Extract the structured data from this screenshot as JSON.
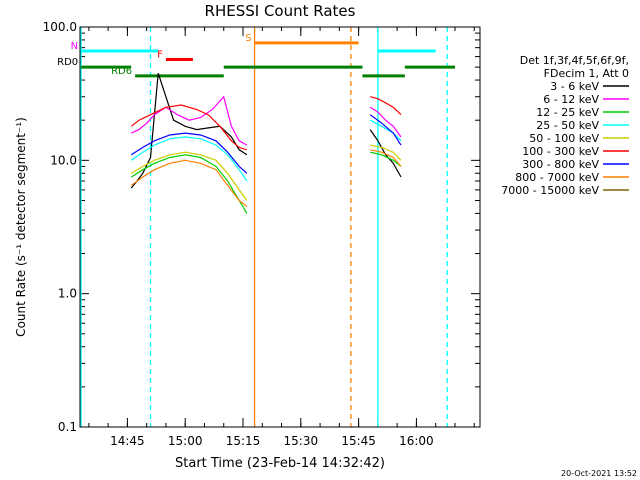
{
  "chart_data": {
    "type": "line",
    "title": "RHESSI Count Rates",
    "xlabel": "Start Time (23-Feb-14 14:32:42)",
    "ylabel": "Count Rate (s⁻¹ detector segment⁻¹)",
    "yscale": "log",
    "ylim": [
      0.1,
      100.0
    ],
    "xlim": [
      "14:32:42",
      "16:16:30"
    ],
    "x_ticks": [
      "14:45",
      "15:00",
      "15:15",
      "15:30",
      "15:45",
      "16:00"
    ],
    "y_ticks": [
      "0.1",
      "1.0",
      "10.0",
      "100.0"
    ],
    "grid": false,
    "legend_header": [
      "Det 1f,3f,4f,5f,6f,9f,",
      "FDecim 1, Att 0"
    ],
    "legend_placement": "right",
    "series": [
      {
        "name": "3 - 6 keV",
        "color": "#000000",
        "segments": [
          {
            "x": [
              "14:46:00",
              "14:47:30",
              "14:49:00",
              "14:51:00",
              "14:53:00",
              "14:55:00",
              "14:57:00",
              "15:00:00",
              "15:03:00",
              "15:06:00",
              "15:09:00",
              "15:12:00",
              "15:14:00",
              "15:16:00"
            ],
            "y": [
              6.2,
              7.0,
              8.0,
              10.5,
              45.0,
              30.0,
              20.0,
              18.0,
              17.0,
              17.5,
              18.0,
              15.0,
              12.0,
              11.0
            ]
          },
          {
            "x": [
              "15:48:00",
              "15:50:00",
              "15:52:00",
              "15:54:00",
              "15:56:00"
            ],
            "y": [
              17.0,
              14.0,
              11.0,
              9.5,
              7.5
            ]
          }
        ]
      },
      {
        "name": "6 - 12 keV",
        "color": "#ff00ff",
        "segments": [
          {
            "x": [
              "14:46:00",
              "14:48:00",
              "14:50:00",
              "14:52:00",
              "14:55:00",
              "14:58:00",
              "15:01:00",
              "15:04:00",
              "15:07:00",
              "15:10:00",
              "15:12:00",
              "15:14:00",
              "15:16:00"
            ],
            "y": [
              16.0,
              17.0,
              19.0,
              22.0,
              25.0,
              22.0,
              20.0,
              21.0,
              24.0,
              30.0,
              18.0,
              14.0,
              13.0
            ]
          },
          {
            "x": [
              "15:48:00",
              "15:50:00",
              "15:52:00",
              "15:54:00",
              "15:56:00"
            ],
            "y": [
              25.0,
              23.0,
              20.0,
              18.0,
              15.0
            ]
          }
        ]
      },
      {
        "name": "12 - 25 keV",
        "color": "#00cc00",
        "segments": [
          {
            "x": [
              "14:46:00",
              "14:49:00",
              "14:52:00",
              "14:56:00",
              "15:00:00",
              "15:04:00",
              "15:08:00",
              "15:11:00",
              "15:14:00",
              "15:16:00"
            ],
            "y": [
              7.5,
              8.5,
              9.5,
              10.5,
              11.0,
              10.5,
              9.0,
              7.0,
              5.0,
              4.0
            ]
          },
          {
            "x": [
              "15:48:00",
              "15:51:00",
              "15:54:00",
              "15:56:00"
            ],
            "y": [
              11.5,
              11.0,
              10.0,
              9.0
            ]
          }
        ]
      },
      {
        "name": "25 - 50 keV",
        "color": "#00ffff",
        "segments": [
          {
            "x": [
              "14:46:00",
              "14:49:00",
              "14:52:00",
              "14:56:00",
              "15:00:00",
              "15:04:00",
              "15:08:00",
              "15:11:00",
              "15:14:00",
              "15:16:00"
            ],
            "y": [
              10.0,
              11.5,
              13.0,
              14.5,
              15.0,
              14.5,
              13.0,
              11.0,
              8.5,
              7.0
            ]
          },
          {
            "x": [
              "15:48:00",
              "15:51:00",
              "15:54:00",
              "15:56:00"
            ],
            "y": [
              20.0,
              18.0,
              16.0,
              14.0
            ]
          }
        ]
      },
      {
        "name": "50 - 100 keV",
        "color": "#cccc00",
        "segments": [
          {
            "x": [
              "14:46:00",
              "14:49:00",
              "14:52:00",
              "14:56:00",
              "15:00:00",
              "15:04:00",
              "15:08:00",
              "15:11:00",
              "15:14:00",
              "15:16:00"
            ],
            "y": [
              8.0,
              9.0,
              10.0,
              11.0,
              11.5,
              11.0,
              10.0,
              8.0,
              6.0,
              5.0
            ]
          },
          {
            "x": [
              "15:48:00",
              "15:51:00",
              "15:54:00",
              "15:56:00"
            ],
            "y": [
              13.0,
              12.5,
              11.5,
              10.0
            ]
          }
        ]
      },
      {
        "name": "100 - 300 keV",
        "color": "#ff0000",
        "segments": [
          {
            "x": [
              "14:46:00",
              "14:48:00",
              "14:51:00",
              "14:55:00",
              "14:59:00",
              "15:03:00",
              "15:06:00",
              "15:09:00",
              "15:12:00",
              "15:14:00",
              "15:16:00"
            ],
            "y": [
              18.0,
              20.0,
              22.0,
              25.0,
              26.0,
              24.0,
              22.0,
              18.0,
              14.0,
              12.5,
              12.0
            ]
          },
          {
            "x": [
              "15:48:00",
              "15:50:00",
              "15:52:00",
              "15:54:00",
              "15:56:00"
            ],
            "y": [
              30.0,
              29.0,
              27.0,
              25.0,
              22.0
            ]
          }
        ]
      },
      {
        "name": "300 - 800 keV",
        "color": "#0000ff",
        "segments": [
          {
            "x": [
              "14:46:00",
              "14:49:00",
              "14:52:00",
              "14:56:00",
              "15:00:00",
              "15:04:00",
              "15:08:00",
              "15:11:00",
              "15:14:00",
              "15:16:00"
            ],
            "y": [
              11.0,
              12.5,
              14.0,
              15.5,
              16.0,
              15.5,
              14.0,
              11.5,
              9.0,
              8.0
            ]
          },
          {
            "x": [
              "15:48:00",
              "15:51:00",
              "15:54:00",
              "15:56:00"
            ],
            "y": [
              22.0,
              19.0,
              16.0,
              13.0
            ]
          }
        ]
      },
      {
        "name": "800 - 7000 keV",
        "color": "#ff8000",
        "segments": [
          {
            "x": [
              "14:46:00",
              "14:49:00",
              "14:52:00",
              "14:56:00",
              "15:00:00",
              "15:04:00",
              "15:08:00",
              "15:11:00",
              "15:14:00",
              "15:16:00"
            ],
            "y": [
              6.5,
              7.5,
              8.5,
              9.5,
              10.0,
              9.5,
              8.5,
              6.5,
              5.0,
              4.5
            ]
          },
          {
            "x": [
              "15:48:00",
              "15:51:00",
              "15:54:00",
              "15:56:00"
            ],
            "y": [
              12.0,
              11.5,
              10.5,
              9.0
            ]
          }
        ]
      },
      {
        "name": "7000 - 15000 keV",
        "color": "#806000",
        "segments": []
      }
    ],
    "flag_bars": [
      {
        "label": "N",
        "label_color": "#ff00ff",
        "color": "#00ffff",
        "segments": [
          [
            "14:33:00",
            "14:53:00"
          ],
          [
            "15:50:00",
            "16:05:00"
          ]
        ],
        "y": 66.0
      },
      {
        "label": "S",
        "label_color": "#ff8000",
        "color": "#ff8000",
        "segments": [
          [
            "15:18:00",
            "15:45:00"
          ]
        ],
        "y": 76.0
      },
      {
        "label": "F",
        "label_color": "#ff0000",
        "color": "#ff0000",
        "segments": [
          [
            "14:55:00",
            "15:02:00"
          ]
        ],
        "y": 57.0
      },
      {
        "label": "RD0",
        "label_color": "#000000",
        "color": "#008000",
        "segments": [
          [
            "14:33:00",
            "14:46:00"
          ],
          [
            "15:10:00",
            "15:46:00"
          ],
          [
            "15:57:00",
            "16:10:00"
          ]
        ],
        "y": 50.0
      },
      {
        "label": "RD6",
        "label_color": "#008000",
        "color": "#008000",
        "segments": [
          [
            "14:47:00",
            "15:10:00"
          ],
          [
            "15:46:00",
            "15:57:00"
          ]
        ],
        "y": 43.0
      }
    ],
    "vertical_lines": [
      {
        "x": "14:32:58",
        "color": "#00ffff",
        "style": "solid"
      },
      {
        "x": "14:51:00",
        "color": "#00ffff",
        "style": "dashed"
      },
      {
        "x": "15:50:00",
        "color": "#00ffff",
        "style": "solid"
      },
      {
        "x": "16:08:00",
        "color": "#00ffff",
        "style": "dashed"
      },
      {
        "x": "15:18:00",
        "color": "#ff8000",
        "style": "solid"
      },
      {
        "x": "15:43:00",
        "color": "#ff8000",
        "style": "dashed"
      }
    ]
  },
  "footer": {
    "timestamp": "20-Oct-2021 13:52"
  }
}
